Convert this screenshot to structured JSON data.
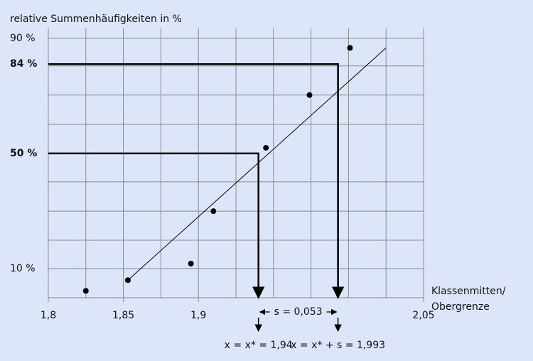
{
  "chart_data": {
    "type": "probability-plot",
    "y_label": "relative Summenhäufigkeiten in %",
    "x_label": [
      "Klassenmitten/",
      "Obergrenze"
    ],
    "y_scale": "probit",
    "grid": true,
    "xlim": [
      1.8,
      2.05
    ],
    "ylim": [
      5.4,
      91.8
    ],
    "xticks": [
      {
        "value": 1.8,
        "label": "1,8"
      },
      {
        "value": 1.85,
        "label": "1,85"
      },
      {
        "value": 1.9,
        "label": "1,9"
      },
      {
        "value": 2.05,
        "label": "2,05"
      }
    ],
    "xgrid": [
      1.825,
      1.875,
      1.925,
      1.95,
      1.975,
      2.0,
      2.025
    ],
    "yticks": [
      {
        "value": 90,
        "label": "90 %"
      },
      {
        "value": 84,
        "label": "84 %"
      },
      {
        "value": 50,
        "label": "50 %"
      },
      {
        "value": 10,
        "label": "10 %"
      }
    ],
    "ygrid": [
      16.7,
      26,
      37.6,
      62.7,
      74.2,
      83.5
    ],
    "series": [
      {
        "kind": "scatter",
        "color": "#000000",
        "x": [
          1.825,
          1.853,
          1.895,
          1.91,
          1.945,
          1.974,
          2.001
        ],
        "values": [
          6.3,
          7.9,
          11,
          26,
          52.5,
          74.2,
          88
        ]
      },
      {
        "kind": "line",
        "color": "#000000",
        "x": [
          1.853,
          2.025
        ],
        "values": [
          7.9,
          88
        ]
      }
    ],
    "guides": [
      {
        "y": 50,
        "x": 1.94,
        "label": "x = x* = 1,94"
      },
      {
        "y": 84,
        "x": 1.993,
        "label": "x = x* + s = 1,993"
      }
    ],
    "spread_label": "s = 0,053"
  }
}
